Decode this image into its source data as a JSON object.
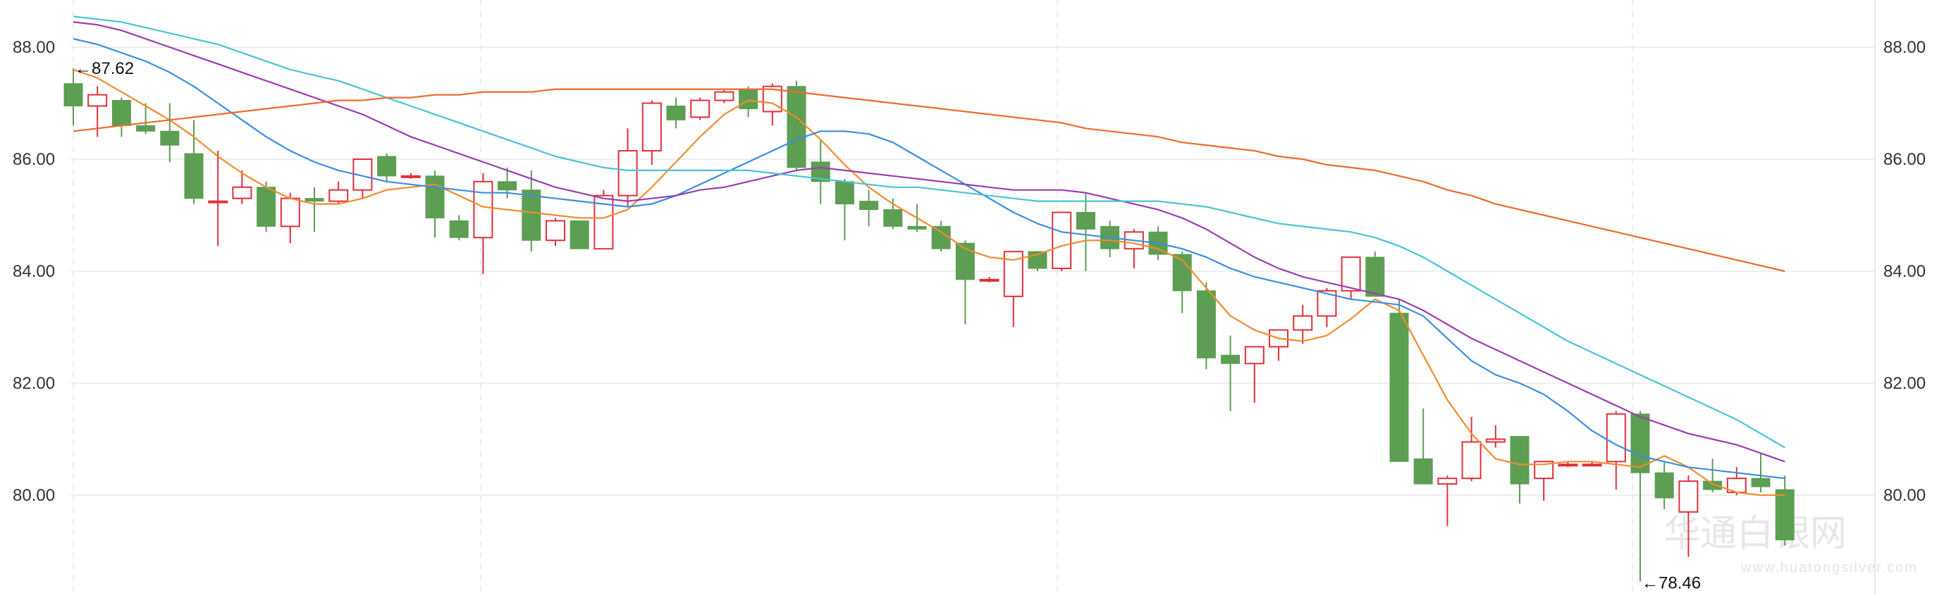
{
  "chart_data": {
    "type": "candlestick",
    "title": "",
    "xlabel": "",
    "ylabel": "",
    "ylim": [
      78.2,
      88.8
    ],
    "yticks": [
      80,
      82,
      84,
      86,
      88
    ],
    "ytick_labels": [
      "80.00",
      "82.00",
      "84.00",
      "86.00",
      "88.00"
    ],
    "grid": true,
    "up_color": "#e0303b",
    "down_color": "#5c9e52",
    "candles": [
      {
        "o": 87.35,
        "h": 87.62,
        "l": 86.6,
        "c": 86.95
      },
      {
        "o": 86.95,
        "h": 87.3,
        "l": 86.4,
        "c": 87.15
      },
      {
        "o": 87.05,
        "h": 87.1,
        "l": 86.4,
        "c": 86.6
      },
      {
        "o": 86.6,
        "h": 87.0,
        "l": 86.45,
        "c": 86.5
      },
      {
        "o": 86.5,
        "h": 87.0,
        "l": 85.95,
        "c": 86.25
      },
      {
        "o": 86.1,
        "h": 86.7,
        "l": 85.2,
        "c": 85.3
      },
      {
        "o": 85.25,
        "h": 86.15,
        "l": 84.45,
        "c": 85.25
      },
      {
        "o": 85.3,
        "h": 85.8,
        "l": 85.2,
        "c": 85.5
      },
      {
        "o": 85.5,
        "h": 85.6,
        "l": 84.7,
        "c": 84.8
      },
      {
        "o": 84.8,
        "h": 85.4,
        "l": 84.5,
        "c": 85.3
      },
      {
        "o": 85.3,
        "h": 85.5,
        "l": 84.7,
        "c": 85.25
      },
      {
        "o": 85.25,
        "h": 85.6,
        "l": 85.2,
        "c": 85.45
      },
      {
        "o": 85.45,
        "h": 86.0,
        "l": 85.3,
        "c": 86.0
      },
      {
        "o": 86.05,
        "h": 86.1,
        "l": 85.6,
        "c": 85.7
      },
      {
        "o": 85.7,
        "h": 85.75,
        "l": 85.65,
        "c": 85.7
      },
      {
        "o": 85.7,
        "h": 85.8,
        "l": 84.6,
        "c": 84.95
      },
      {
        "o": 84.9,
        "h": 85.0,
        "l": 84.55,
        "c": 84.6
      },
      {
        "o": 84.6,
        "h": 85.75,
        "l": 83.95,
        "c": 85.6
      },
      {
        "o": 85.6,
        "h": 85.85,
        "l": 85.3,
        "c": 85.45
      },
      {
        "o": 85.45,
        "h": 85.8,
        "l": 84.35,
        "c": 84.55
      },
      {
        "o": 84.55,
        "h": 84.95,
        "l": 84.45,
        "c": 84.9
      },
      {
        "o": 84.9,
        "h": 84.9,
        "l": 84.4,
        "c": 84.4
      },
      {
        "o": 84.4,
        "h": 85.45,
        "l": 84.4,
        "c": 85.35
      },
      {
        "o": 85.35,
        "h": 86.55,
        "l": 85.15,
        "c": 86.15
      },
      {
        "o": 86.15,
        "h": 87.05,
        "l": 85.9,
        "c": 87.0
      },
      {
        "o": 86.95,
        "h": 87.1,
        "l": 86.55,
        "c": 86.7
      },
      {
        "o": 86.75,
        "h": 87.1,
        "l": 86.7,
        "c": 87.05
      },
      {
        "o": 87.05,
        "h": 87.25,
        "l": 87.0,
        "c": 87.2
      },
      {
        "o": 87.25,
        "h": 87.3,
        "l": 86.75,
        "c": 86.9
      },
      {
        "o": 86.85,
        "h": 87.35,
        "l": 86.6,
        "c": 87.3
      },
      {
        "o": 87.3,
        "h": 87.4,
        "l": 85.8,
        "c": 85.85
      },
      {
        "o": 85.95,
        "h": 86.35,
        "l": 85.2,
        "c": 85.6
      },
      {
        "o": 85.6,
        "h": 85.65,
        "l": 84.55,
        "c": 85.2
      },
      {
        "o": 85.25,
        "h": 85.45,
        "l": 84.8,
        "c": 85.1
      },
      {
        "o": 85.1,
        "h": 85.3,
        "l": 84.75,
        "c": 84.8
      },
      {
        "o": 84.8,
        "h": 85.2,
        "l": 84.7,
        "c": 84.75
      },
      {
        "o": 84.8,
        "h": 84.9,
        "l": 84.35,
        "c": 84.4
      },
      {
        "o": 84.5,
        "h": 84.55,
        "l": 83.05,
        "c": 83.85
      },
      {
        "o": 83.85,
        "h": 83.9,
        "l": 83.8,
        "c": 83.85
      },
      {
        "o": 83.55,
        "h": 84.35,
        "l": 83.0,
        "c": 84.35
      },
      {
        "o": 84.35,
        "h": 84.35,
        "l": 84.0,
        "c": 84.05
      },
      {
        "o": 84.05,
        "h": 85.05,
        "l": 84.0,
        "c": 85.05
      },
      {
        "o": 85.05,
        "h": 85.4,
        "l": 84.0,
        "c": 84.75
      },
      {
        "o": 84.8,
        "h": 84.9,
        "l": 84.25,
        "c": 84.4
      },
      {
        "o": 84.4,
        "h": 84.75,
        "l": 84.05,
        "c": 84.7
      },
      {
        "o": 84.7,
        "h": 84.8,
        "l": 84.2,
        "c": 84.3
      },
      {
        "o": 84.3,
        "h": 84.35,
        "l": 83.25,
        "c": 83.65
      },
      {
        "o": 83.65,
        "h": 83.8,
        "l": 82.25,
        "c": 82.45
      },
      {
        "o": 82.5,
        "h": 82.85,
        "l": 81.5,
        "c": 82.35
      },
      {
        "o": 82.35,
        "h": 82.6,
        "l": 81.65,
        "c": 82.65
      },
      {
        "o": 82.65,
        "h": 82.95,
        "l": 82.4,
        "c": 82.95
      },
      {
        "o": 82.95,
        "h": 83.4,
        "l": 82.7,
        "c": 83.2
      },
      {
        "o": 83.2,
        "h": 83.7,
        "l": 83.0,
        "c": 83.65
      },
      {
        "o": 83.65,
        "h": 84.25,
        "l": 83.5,
        "c": 84.25
      },
      {
        "o": 84.25,
        "h": 84.35,
        "l": 83.55,
        "c": 83.55
      },
      {
        "o": 83.25,
        "h": 83.5,
        "l": 80.6,
        "c": 80.6
      },
      {
        "o": 80.65,
        "h": 81.55,
        "l": 80.2,
        "c": 80.2
      },
      {
        "o": 80.2,
        "h": 80.35,
        "l": 79.45,
        "c": 80.3
      },
      {
        "o": 80.3,
        "h": 81.4,
        "l": 80.25,
        "c": 80.95
      },
      {
        "o": 80.95,
        "h": 81.25,
        "l": 80.85,
        "c": 81.0
      },
      {
        "o": 81.05,
        "h": 81.05,
        "l": 79.85,
        "c": 80.2
      },
      {
        "o": 80.3,
        "h": 80.6,
        "l": 79.9,
        "c": 80.6
      },
      {
        "o": 80.55,
        "h": 80.6,
        "l": 80.5,
        "c": 80.55
      },
      {
        "o": 80.55,
        "h": 80.6,
        "l": 80.55,
        "c": 80.55
      },
      {
        "o": 80.6,
        "h": 81.5,
        "l": 80.1,
        "c": 81.45
      },
      {
        "o": 81.45,
        "h": 81.5,
        "l": 78.46,
        "c": 80.4
      },
      {
        "o": 80.4,
        "h": 80.6,
        "l": 79.75,
        "c": 79.95
      },
      {
        "o": 79.7,
        "h": 80.35,
        "l": 78.9,
        "c": 80.25
      },
      {
        "o": 80.25,
        "h": 80.65,
        "l": 80.05,
        "c": 80.1
      },
      {
        "o": 80.05,
        "h": 80.5,
        "l": 80.0,
        "c": 80.3
      },
      {
        "o": 80.3,
        "h": 80.75,
        "l": 80.05,
        "c": 80.15
      },
      {
        "o": 80.1,
        "h": 80.35,
        "l": 79.1,
        "c": 79.2
      }
    ],
    "series": [
      {
        "name": "",
        "color": "#f08c2e",
        "values": [
          87.6,
          87.45,
          87.2,
          86.95,
          86.7,
          86.4,
          86.05,
          85.75,
          85.5,
          85.3,
          85.2,
          85.2,
          85.3,
          85.45,
          85.5,
          85.55,
          85.35,
          85.15,
          85.1,
          85.05,
          85.0,
          84.95,
          84.95,
          85.1,
          85.5,
          85.95,
          86.4,
          86.8,
          87.05,
          87.0,
          86.75,
          86.35,
          85.9,
          85.5,
          85.2,
          84.95,
          84.7,
          84.4,
          84.25,
          84.2,
          84.3,
          84.45,
          84.55,
          84.55,
          84.5,
          84.4,
          84.2,
          83.7,
          83.2,
          82.95,
          82.8,
          82.75,
          82.85,
          83.15,
          83.5,
          83.3,
          82.5,
          81.7,
          81.1,
          80.65,
          80.55,
          80.55,
          80.6,
          80.6,
          80.55,
          80.5,
          80.7,
          80.5,
          80.2,
          80.05,
          80.0,
          80.0
        ]
      },
      {
        "name": "",
        "color": "#3b8fe0",
        "values": [
          88.15,
          88.05,
          87.9,
          87.75,
          87.55,
          87.3,
          87.0,
          86.7,
          86.4,
          86.15,
          85.95,
          85.8,
          85.7,
          85.6,
          85.55,
          85.5,
          85.45,
          85.4,
          85.4,
          85.35,
          85.3,
          85.25,
          85.2,
          85.15,
          85.2,
          85.35,
          85.55,
          85.75,
          85.95,
          86.15,
          86.35,
          86.5,
          86.5,
          86.45,
          86.3,
          86.05,
          85.8,
          85.55,
          85.3,
          85.05,
          84.85,
          84.7,
          84.65,
          84.6,
          84.55,
          84.5,
          84.4,
          84.25,
          84.05,
          83.9,
          83.8,
          83.7,
          83.6,
          83.5,
          83.45,
          83.4,
          83.2,
          82.8,
          82.4,
          82.15,
          82.0,
          81.8,
          81.5,
          81.15,
          80.9,
          80.7,
          80.6,
          80.5,
          80.45,
          80.4,
          80.35,
          80.3
        ]
      },
      {
        "name": "",
        "color": "#9b3db0",
        "values": [
          88.45,
          88.4,
          88.3,
          88.15,
          88.0,
          87.85,
          87.7,
          87.55,
          87.4,
          87.25,
          87.1,
          86.95,
          86.8,
          86.6,
          86.4,
          86.25,
          86.1,
          85.95,
          85.8,
          85.65,
          85.5,
          85.4,
          85.3,
          85.25,
          85.3,
          85.35,
          85.45,
          85.5,
          85.6,
          85.7,
          85.8,
          85.85,
          85.8,
          85.75,
          85.7,
          85.65,
          85.6,
          85.55,
          85.5,
          85.45,
          85.45,
          85.45,
          85.4,
          85.3,
          85.2,
          85.1,
          84.95,
          84.75,
          84.5,
          84.25,
          84.05,
          83.9,
          83.8,
          83.7,
          83.6,
          83.5,
          83.3,
          83.05,
          82.8,
          82.6,
          82.4,
          82.2,
          82.0,
          81.8,
          81.6,
          81.4,
          81.25,
          81.1,
          81.0,
          80.9,
          80.75,
          80.6
        ]
      },
      {
        "name": "",
        "color": "#47c4d6",
        "values": [
          88.55,
          88.5,
          88.45,
          88.35,
          88.25,
          88.15,
          88.05,
          87.9,
          87.75,
          87.6,
          87.5,
          87.4,
          87.25,
          87.1,
          86.95,
          86.8,
          86.65,
          86.5,
          86.35,
          86.2,
          86.05,
          85.95,
          85.85,
          85.8,
          85.8,
          85.8,
          85.8,
          85.8,
          85.8,
          85.75,
          85.7,
          85.65,
          85.6,
          85.55,
          85.5,
          85.5,
          85.45,
          85.4,
          85.35,
          85.3,
          85.25,
          85.25,
          85.25,
          85.25,
          85.25,
          85.25,
          85.2,
          85.15,
          85.05,
          84.95,
          84.85,
          84.8,
          84.75,
          84.7,
          84.6,
          84.45,
          84.25,
          84.0,
          83.75,
          83.5,
          83.25,
          83.0,
          82.75,
          82.55,
          82.35,
          82.15,
          81.95,
          81.75,
          81.55,
          81.35,
          81.1,
          80.85
        ]
      },
      {
        "name": "",
        "color": "#ee6a2d",
        "values": [
          86.5,
          86.55,
          86.6,
          86.65,
          86.7,
          86.75,
          86.8,
          86.85,
          86.9,
          86.95,
          87.0,
          87.05,
          87.05,
          87.1,
          87.1,
          87.15,
          87.15,
          87.2,
          87.2,
          87.2,
          87.25,
          87.25,
          87.25,
          87.25,
          87.25,
          87.25,
          87.25,
          87.25,
          87.25,
          87.25,
          87.2,
          87.15,
          87.1,
          87.05,
          87.0,
          86.95,
          86.9,
          86.85,
          86.8,
          86.75,
          86.7,
          86.65,
          86.55,
          86.5,
          86.45,
          86.4,
          86.3,
          86.25,
          86.2,
          86.15,
          86.05,
          86.0,
          85.9,
          85.85,
          85.8,
          85.7,
          85.6,
          85.45,
          85.35,
          85.2,
          85.1,
          85.0,
          84.9,
          84.8,
          84.7,
          84.6,
          84.5,
          84.4,
          84.3,
          84.2,
          84.1,
          84.0
        ]
      }
    ],
    "annotations": [
      {
        "text": "←87.62",
        "candle_index": 0,
        "value": 87.62,
        "anchor": "high"
      },
      {
        "text": "←78.46",
        "candle_index": 65,
        "value": 78.46,
        "anchor": "low"
      }
    ],
    "watermark": {
      "text": "华通白银网",
      "subtext": "www.huatongsilver.com"
    }
  }
}
